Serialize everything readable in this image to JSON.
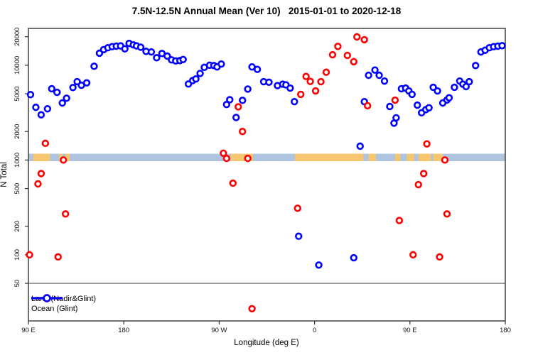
{
  "chart_data": {
    "type": "scatter",
    "title": "7.5N-12.5N Annual Mean (Ver 10)   2015-01-01 to 2020-12-18",
    "x_axis": {
      "title": "Longitude (deg E)",
      "range_deg": [
        90,
        540
      ],
      "ticks": [
        {
          "a": 90,
          "label": "90 E"
        },
        {
          "a": 180,
          "label": "180"
        },
        {
          "a": 270,
          "label": "90 W"
        },
        {
          "a": 360,
          "label": "0"
        },
        {
          "a": 450,
          "label": "90 E"
        },
        {
          "a": 540,
          "label": "180"
        }
      ]
    },
    "y_axis": {
      "title": "N Total",
      "scale": "log",
      "ticks": [
        20000,
        10000,
        5000,
        2000,
        1000,
        500,
        200,
        100,
        50
      ]
    },
    "reference_line_value": 50,
    "land_ocean_band": {
      "value_level": 1000,
      "ocean_color": "#AFC4DF",
      "land_color": "#F7C76F",
      "land_segments_deg": [
        [
          94.5,
          110.5
        ],
        [
          119,
          122.5
        ],
        [
          125,
          129
        ],
        [
          281,
          302
        ],
        [
          341.5,
          406
        ],
        [
          411,
          418
        ],
        [
          436,
          441
        ],
        [
          447,
          454
        ],
        [
          458,
          470
        ],
        [
          472,
          481
        ]
      ]
    },
    "series": [
      {
        "name": "Land (Nadir&Glint)",
        "color": "#FF0000",
        "points": [
          [
            91,
            100
          ],
          [
            99,
            560
          ],
          [
            102,
            720
          ],
          [
            106,
            1500
          ],
          [
            118,
            95
          ],
          [
            123,
            1000
          ],
          [
            125,
            270
          ],
          [
            274,
            1180
          ],
          [
            277,
            1040
          ],
          [
            283,
            570
          ],
          [
            288,
            3640
          ],
          [
            292,
            2000
          ],
          [
            297,
            1040
          ],
          [
            301,
            27
          ],
          [
            344,
            310
          ],
          [
            347,
            4930
          ],
          [
            352,
            7610
          ],
          [
            356,
            6750
          ],
          [
            361,
            5360
          ],
          [
            366,
            6700
          ],
          [
            371,
            8440
          ],
          [
            377,
            12900
          ],
          [
            382,
            15800
          ],
          [
            391,
            12700
          ],
          [
            397,
            10900
          ],
          [
            400,
            19900
          ],
          [
            407,
            18600
          ],
          [
            410,
            3740
          ],
          [
            436,
            4280
          ],
          [
            440,
            230
          ],
          [
            453,
            100
          ],
          [
            458,
            550
          ],
          [
            463,
            720
          ],
          [
            466,
            1480
          ],
          [
            478,
            95
          ],
          [
            483,
            1000
          ],
          [
            485,
            270
          ]
        ]
      },
      {
        "name": "Ocean (Glint)",
        "color": "#0000FF",
        "points": [
          [
            92,
            4900
          ],
          [
            97,
            3600
          ],
          [
            102,
            3000
          ],
          [
            108,
            3470
          ],
          [
            112,
            5650
          ],
          [
            117,
            5180
          ],
          [
            122,
            4000
          ],
          [
            126,
            4490
          ],
          [
            132,
            5820
          ],
          [
            136,
            6710
          ],
          [
            140,
            6150
          ],
          [
            145,
            6520
          ],
          [
            152,
            9750
          ],
          [
            157,
            13400
          ],
          [
            161,
            14600
          ],
          [
            165,
            15300
          ],
          [
            169,
            15700
          ],
          [
            173,
            15900
          ],
          [
            177,
            16000
          ],
          [
            181,
            14900
          ],
          [
            185,
            17000
          ],
          [
            189,
            16400
          ],
          [
            192,
            16000
          ],
          [
            196,
            15500
          ],
          [
            201,
            14000
          ],
          [
            206,
            13800
          ],
          [
            211,
            12000
          ],
          [
            216,
            13300
          ],
          [
            221,
            12500
          ],
          [
            225,
            11400
          ],
          [
            229,
            11100
          ],
          [
            233,
            11200
          ],
          [
            236,
            11500
          ],
          [
            241,
            6340
          ],
          [
            245,
            6890
          ],
          [
            248,
            7170
          ],
          [
            252,
            8200
          ],
          [
            256,
            9500
          ],
          [
            261,
            10000
          ],
          [
            265,
            9930
          ],
          [
            268,
            9600
          ],
          [
            272,
            10300
          ],
          [
            277,
            3850
          ],
          [
            280,
            4330
          ],
          [
            286,
            2810
          ],
          [
            292,
            4260
          ],
          [
            297,
            5610
          ],
          [
            301,
            9600
          ],
          [
            306,
            9050
          ],
          [
            312,
            6700
          ],
          [
            317,
            6620
          ],
          [
            325,
            6100
          ],
          [
            330,
            6310
          ],
          [
            333,
            6210
          ],
          [
            337,
            5740
          ],
          [
            341,
            4130
          ],
          [
            345,
            157
          ],
          [
            364,
            78
          ],
          [
            397,
            93
          ],
          [
            403,
            1400
          ],
          [
            407,
            4130
          ],
          [
            411,
            7840
          ],
          [
            417,
            8900
          ],
          [
            421,
            7840
          ],
          [
            426,
            6810
          ],
          [
            431,
            3670
          ],
          [
            435,
            2450
          ],
          [
            437,
            2790
          ],
          [
            442,
            5650
          ],
          [
            446,
            5740
          ],
          [
            449,
            5360
          ],
          [
            452,
            4930
          ],
          [
            457,
            3790
          ],
          [
            461,
            3150
          ],
          [
            465,
            3400
          ],
          [
            468,
            3560
          ],
          [
            472,
            5850
          ],
          [
            476,
            5360
          ],
          [
            481,
            4000
          ],
          [
            485,
            4300
          ],
          [
            487,
            4540
          ],
          [
            492,
            5850
          ],
          [
            497,
            6810
          ],
          [
            500,
            6310
          ],
          [
            503,
            5960
          ],
          [
            506,
            6700
          ],
          [
            512,
            9930
          ],
          [
            517,
            13800
          ],
          [
            521,
            14400
          ],
          [
            525,
            15300
          ],
          [
            529,
            15700
          ],
          [
            533,
            15900
          ],
          [
            537,
            16100
          ]
        ]
      }
    ]
  }
}
